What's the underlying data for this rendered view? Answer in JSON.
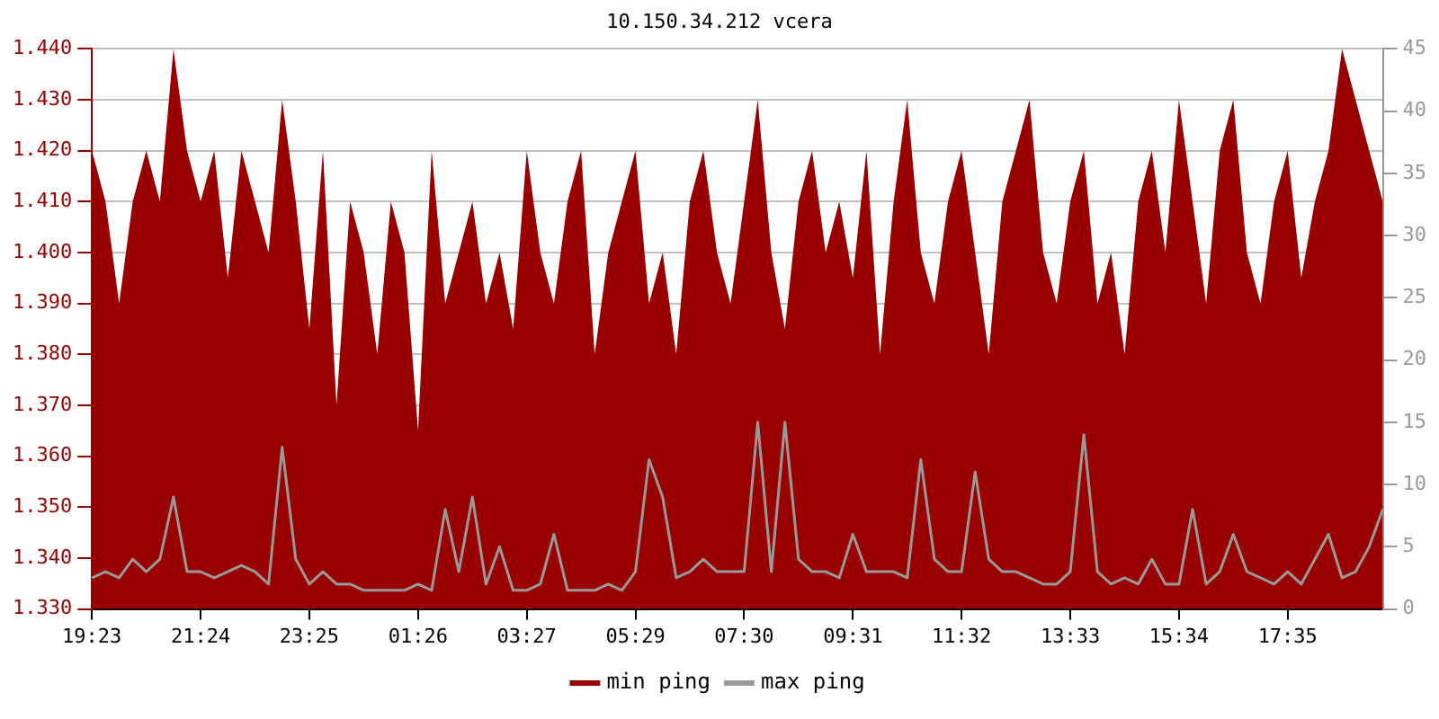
{
  "chart_data": {
    "type": "area",
    "title": "10.150.34.212 vcera",
    "categories": [
      "19:23",
      null,
      null,
      null,
      null,
      null,
      null,
      null,
      "21:24",
      null,
      null,
      null,
      null,
      null,
      null,
      null,
      "23:25",
      null,
      null,
      null,
      null,
      null,
      null,
      null,
      "01:26",
      null,
      null,
      null,
      null,
      null,
      null,
      null,
      "03:27",
      null,
      null,
      null,
      null,
      null,
      null,
      null,
      "05:29",
      null,
      null,
      null,
      null,
      null,
      null,
      null,
      "07:30",
      null,
      null,
      null,
      null,
      null,
      null,
      null,
      "09:31",
      null,
      null,
      null,
      null,
      null,
      null,
      null,
      "11:32",
      null,
      null,
      null,
      null,
      null,
      null,
      null,
      "13:33",
      null,
      null,
      null,
      null,
      null,
      null,
      null,
      "15:34",
      null,
      null,
      null,
      null,
      null,
      null,
      null,
      "17:35",
      null,
      null,
      null,
      null,
      null,
      null,
      null
    ],
    "series": [
      {
        "name": "min ping",
        "color": "#990000",
        "values": [
          1.42,
          1.41,
          1.39,
          1.41,
          1.42,
          1.41,
          1.44,
          1.42,
          1.41,
          1.42,
          1.395,
          1.42,
          1.41,
          1.4,
          1.43,
          1.41,
          1.385,
          1.42,
          1.37,
          1.41,
          1.4,
          1.38,
          1.41,
          1.4,
          1.365,
          1.42,
          1.39,
          1.4,
          1.41,
          1.39,
          1.4,
          1.385,
          1.42,
          1.4,
          1.39,
          1.41,
          1.42,
          1.38,
          1.4,
          1.41,
          1.42,
          1.39,
          1.4,
          1.38,
          1.41,
          1.42,
          1.4,
          1.39,
          1.41,
          1.43,
          1.4,
          1.385,
          1.41,
          1.42,
          1.4,
          1.41,
          1.395,
          1.42,
          1.38,
          1.41,
          1.43,
          1.4,
          1.39,
          1.41,
          1.42,
          1.4,
          1.38,
          1.41,
          1.42,
          1.43,
          1.4,
          1.39,
          1.41,
          1.42,
          1.39,
          1.4,
          1.38,
          1.41,
          1.42,
          1.4,
          1.43,
          1.41,
          1.39,
          1.42,
          1.43,
          1.4,
          1.39,
          1.41,
          1.42,
          1.395,
          1.41,
          1.42,
          1.44,
          1.43,
          1.42,
          1.41
        ]
      },
      {
        "name": "max ping",
        "type": "line",
        "axis": "y2",
        "color": "#999999",
        "values": [
          2.5,
          3,
          2.5,
          4,
          3,
          4,
          9,
          3,
          3,
          2.5,
          3,
          3.5,
          3,
          2,
          13,
          4,
          2,
          3,
          2,
          2,
          1.5,
          1.5,
          1.5,
          1.5,
          2,
          1.5,
          8,
          3,
          9,
          2,
          5,
          1.5,
          1.5,
          2,
          6,
          1.5,
          1.5,
          1.5,
          2,
          1.5,
          3,
          12,
          9,
          2.5,
          3,
          4,
          3,
          3,
          3,
          15,
          3,
          15,
          4,
          3,
          3,
          2.5,
          6,
          3,
          3,
          3,
          2.5,
          12,
          4,
          3,
          3,
          11,
          4,
          3,
          3,
          2.5,
          2,
          2,
          3,
          14,
          3,
          2,
          2.5,
          2,
          4,
          2,
          2,
          8,
          2,
          3,
          6,
          3,
          2.5,
          2,
          3,
          2,
          4,
          6,
          2.5,
          3,
          5,
          8
        ]
      }
    ],
    "ylim": [
      1.33,
      1.44
    ],
    "yticks": [
      {
        "value": 1.33,
        "label": "1.330"
      },
      {
        "value": 1.34,
        "label": "1.340"
      },
      {
        "value": 1.35,
        "label": "1.350"
      },
      {
        "value": 1.36,
        "label": "1.360"
      },
      {
        "value": 1.37,
        "label": "1.370"
      },
      {
        "value": 1.38,
        "label": "1.380"
      },
      {
        "value": 1.39,
        "label": "1.390"
      },
      {
        "value": 1.4,
        "label": "1.400"
      },
      {
        "value": 1.41,
        "label": "1.410"
      },
      {
        "value": 1.42,
        "label": "1.420"
      },
      {
        "value": 1.43,
        "label": "1.430"
      },
      {
        "value": 1.44,
        "label": "1.440"
      }
    ],
    "y2lim": [
      0,
      45
    ],
    "y2ticks": [
      0,
      5,
      10,
      15,
      20,
      25,
      30,
      35,
      40,
      45
    ],
    "grid": "y",
    "legend": "bottom",
    "marker": "none",
    "line_style": "solid"
  }
}
